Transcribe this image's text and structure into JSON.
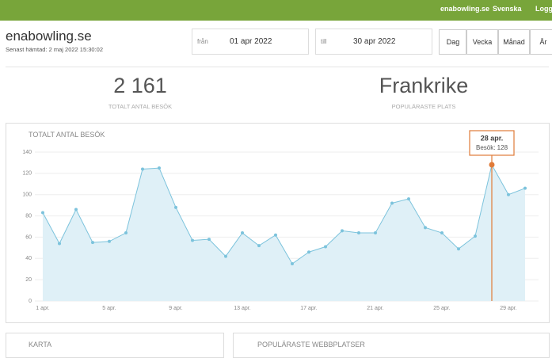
{
  "nav": {
    "site": "enabowling.se",
    "language": "Svenska",
    "login": "Logga"
  },
  "header": {
    "title": "enabowling.se",
    "subtitle": "Senast hämtad: 2 maj 2022 15:30:02",
    "from_label": "från",
    "from_value": "01 apr 2022",
    "to_label": "till",
    "to_value": "30 apr 2022",
    "periods": [
      "Dag",
      "Vecka",
      "Månad",
      "År"
    ]
  },
  "stats": [
    {
      "value": "2 161",
      "label": "TOTALT ANTAL BESÖK"
    },
    {
      "value": "Frankrike",
      "label": "POPULÄRASTE PLATS"
    }
  ],
  "chart_data": {
    "type": "line",
    "title": "TOTALT ANTAL BESÖK",
    "categories": [
      "1 apr.",
      null,
      null,
      null,
      "5 apr.",
      null,
      null,
      null,
      "9 apr.",
      null,
      null,
      null,
      "13 apr.",
      null,
      null,
      null,
      "17 apr.",
      null,
      null,
      null,
      "21 apr.",
      null,
      null,
      null,
      "25 apr.",
      null,
      null,
      null,
      "29 apr.",
      null
    ],
    "values": [
      83,
      54,
      86,
      55,
      56,
      64,
      124,
      125,
      88,
      57,
      58,
      42,
      64,
      52,
      62,
      35,
      46,
      51,
      66,
      64,
      64,
      92,
      96,
      69,
      64,
      49,
      61,
      128,
      100,
      106
    ],
    "color": "#7cc3dc",
    "ylim": [
      0,
      140
    ],
    "yticks": [
      0,
      20,
      40,
      60,
      80,
      100,
      120,
      140
    ],
    "grid": true,
    "tooltip": {
      "title": "28 apr.",
      "label": "Besök: 128"
    }
  },
  "panels": [
    "KARTA",
    "POPULÄRASTE WEBBPLATSER"
  ]
}
